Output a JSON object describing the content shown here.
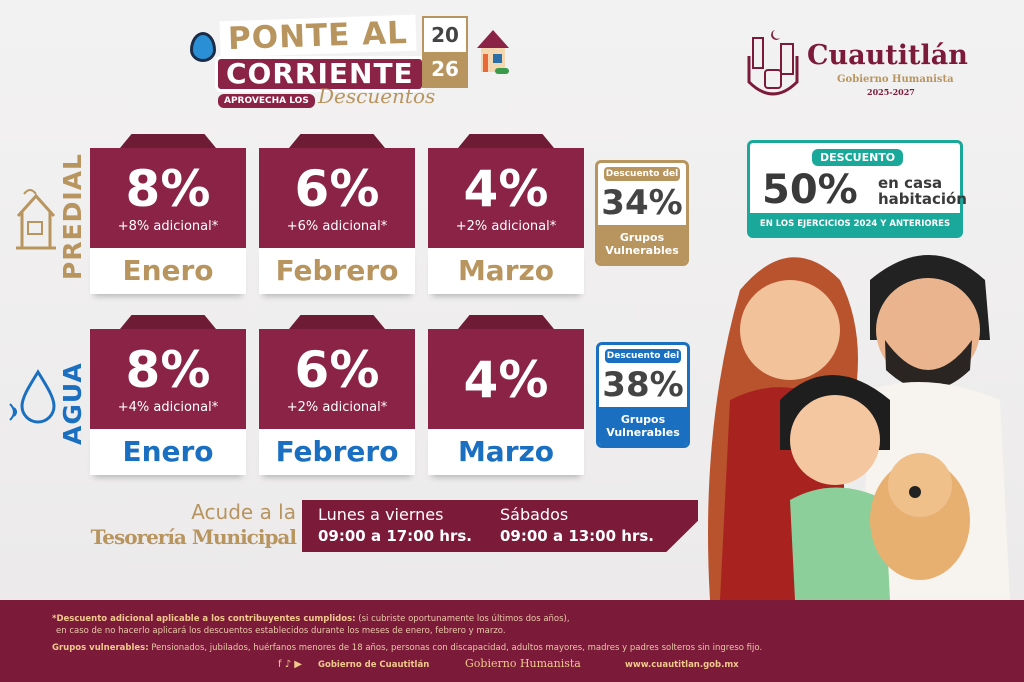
{
  "campaign": {
    "line1": "PONTE AL",
    "line2": "CORRIENTE",
    "tag": "APROVECHA LOS",
    "script": "Descuentos",
    "year_top": "20",
    "year_bottom": "26"
  },
  "brand": {
    "name": "Cuautitlán",
    "tagline": "Gobierno Humanista",
    "period": "2025-2027"
  },
  "colors": {
    "maroon": "#8a2345",
    "gold": "#b8955f",
    "blue": "#1a6fc0",
    "teal": "#1aa89a",
    "footer": "#7c1a3a"
  },
  "predial": {
    "label": "PREDIAL",
    "icon": "house-icon",
    "months": [
      {
        "pct": "8%",
        "extra": "+8% adicional*",
        "month": "Enero"
      },
      {
        "pct": "6%",
        "extra": "+6% adicional*",
        "month": "Febrero"
      },
      {
        "pct": "4%",
        "extra": "+2% adicional*",
        "month": "Marzo"
      }
    ],
    "vulnerable": {
      "header": "Descuento del",
      "pct": "34%",
      "footer": "Grupos Vulnerables"
    }
  },
  "agua": {
    "label": "AGUA",
    "icon": "water-drop-icon",
    "months": [
      {
        "pct": "8%",
        "extra": "+4% adicional*",
        "month": "Enero"
      },
      {
        "pct": "6%",
        "extra": "+2% adicional*",
        "month": "Febrero"
      },
      {
        "pct": "4%",
        "extra": "",
        "month": "Marzo"
      }
    ],
    "vulnerable": {
      "header": "Descuento del",
      "pct": "38%",
      "footer": "Grupos Vulnerables"
    }
  },
  "promo": {
    "header": "DESCUENTO",
    "pct": "50%",
    "text": "en casa habitación",
    "footer": "EN LOS EJERCICIOS 2024 Y ANTERIORES"
  },
  "visit": {
    "line1": "Acude a la",
    "line2": "Tesorería Municipal",
    "weekday_label": "Lunes a viernes",
    "weekday_hours": "09:00 a 17:00 hrs.",
    "saturday_label": "Sábados",
    "saturday_hours": "09:00 a 13:00 hrs."
  },
  "footer": {
    "note_bold": "*Descuento adicional aplicable a los contribuyentes cumplidos:",
    "note_text": " (si cubriste oportunamente los últimos dos años),",
    "note_line2": "en caso de no hacerlo aplicará los descuentos establecidos durante los meses de enero, febrero y marzo.",
    "groups_bold": "Grupos vulnerables:",
    "groups_text": " Pensionados, jubilados, huérfanos menores de 18 años, personas con discapacidad, adultos mayores, madres y padres solteros sin ingreso fijo.",
    "social": "Gobierno de Cuautitlán",
    "slogan": "Gobierno Humanista",
    "url": "www.cuautitlan.gob.mx"
  }
}
